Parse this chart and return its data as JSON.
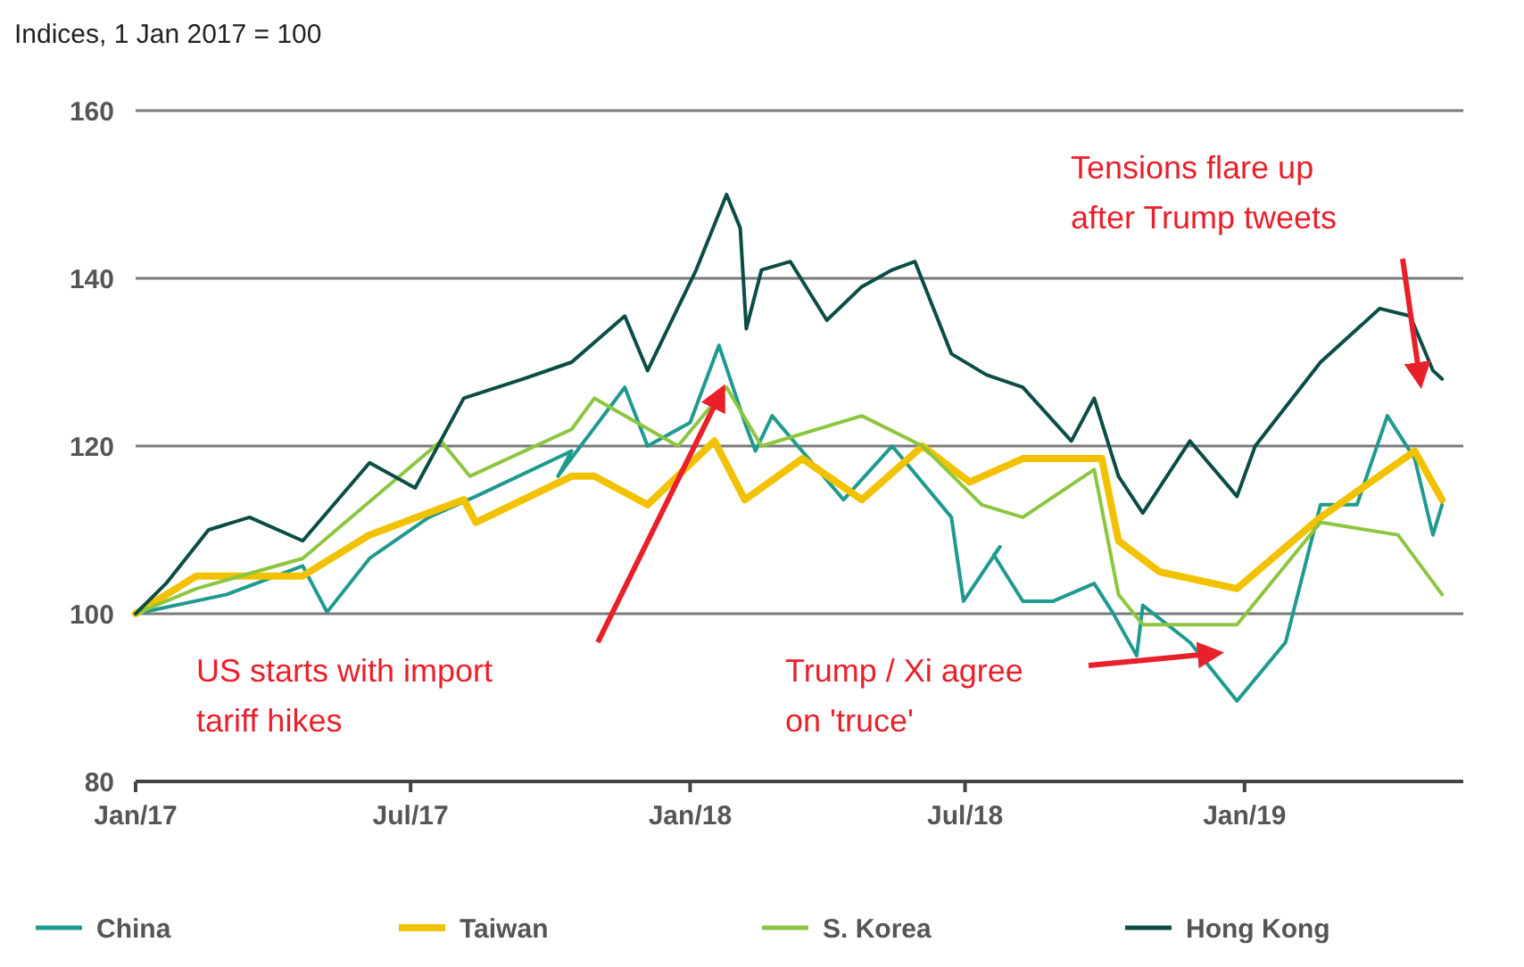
{
  "chart_data": {
    "type": "line",
    "title": "Indices, 1 Jan 2017 = 100",
    "xlim": [
      "2017-01-01",
      "2019-05-25"
    ],
    "ylim": [
      80,
      160
    ],
    "yticks": [
      80,
      100,
      120,
      140,
      160
    ],
    "xticks": [
      {
        "value": "2017-01-01",
        "label": "Jan/17"
      },
      {
        "value": "2017-07-01",
        "label": "Jul/17"
      },
      {
        "value": "2018-01-01",
        "label": "Jan/18"
      },
      {
        "value": "2018-07-01",
        "label": "Jul/18"
      },
      {
        "value": "2019-01-01",
        "label": "Jan/19"
      }
    ],
    "grid": "y",
    "legend": "bottom",
    "line_style": "solid",
    "marker": "none",
    "series": [
      {
        "name": "China",
        "color": "#1f9a8f",
        "x": [
          "2017-01-01",
          "2017-03-02",
          "2017-04-21",
          "2017-05-07",
          "2017-06-04",
          "2017-07-13",
          "2017-08-13",
          "2017-10-15",
          "2017-10-06",
          "2017-11-19",
          "2017-12-04",
          "2018-01-01",
          "2018-01-20",
          "2018-02-06",
          "2018-02-13",
          "2018-02-24",
          "2018-04-12",
          "2018-05-14",
          "2018-06-22",
          "2018-06-30",
          "2018-07-24",
          "2018-07-20",
          "2018-08-08",
          "2018-08-28",
          "2018-09-24",
          "2018-10-06",
          "2018-10-22",
          "2018-10-26",
          "2018-11-26",
          "2018-12-27",
          "2019-01-28",
          "2019-02-20",
          "2019-03-16",
          "2019-04-05",
          "2019-04-23",
          "2019-05-05",
          "2019-05-11"
        ],
        "values": [
          100,
          102.3,
          105.7,
          100.2,
          106.6,
          111.5,
          114,
          119.4,
          116.4,
          127,
          120,
          122.8,
          132,
          122.8,
          119.4,
          123.6,
          113.6,
          120,
          111.5,
          101.5,
          108,
          107,
          101.5,
          101.5,
          103.6,
          100.2,
          95,
          101,
          96.6,
          89.6,
          96.6,
          113,
          113,
          123.6,
          118.5,
          109.4,
          113
        ]
      },
      {
        "name": "Taiwan",
        "color": "#f2c200",
        "x": [
          "2017-01-01",
          "2017-02-10",
          "2017-04-21",
          "2017-06-04",
          "2017-08-05",
          "2017-08-13",
          "2017-10-15",
          "2017-10-30",
          "2017-12-04",
          "2018-01-17",
          "2018-02-06",
          "2018-03-16",
          "2018-04-24",
          "2018-06-03",
          "2018-07-04",
          "2018-08-08",
          "2018-09-29",
          "2018-10-10",
          "2018-11-06",
          "2018-12-27",
          "2019-02-20",
          "2019-04-23",
          "2019-05-11"
        ],
        "values": [
          100,
          104.5,
          104.5,
          109.4,
          113.6,
          110.9,
          116.4,
          116.4,
          113,
          120.6,
          113.6,
          118.5,
          113.6,
          120,
          115.7,
          118.5,
          118.5,
          108.7,
          105,
          103,
          111.5,
          119.4,
          113.6
        ]
      },
      {
        "name": "S. Korea",
        "color": "#8cc63f",
        "x": [
          "2017-01-01",
          "2017-02-10",
          "2017-04-21",
          "2017-07-21",
          "2017-08-09",
          "2017-10-15",
          "2017-10-30",
          "2017-12-24",
          "2018-01-25",
          "2018-02-17",
          "2018-04-24",
          "2018-06-03",
          "2018-07-12",
          "2018-08-08",
          "2018-09-24",
          "2018-10-10",
          "2018-10-26",
          "2018-12-27",
          "2019-02-20",
          "2019-04-12",
          "2019-05-11"
        ],
        "values": [
          100,
          103,
          106.6,
          120.6,
          116.4,
          122,
          125.7,
          120,
          127,
          120,
          123.6,
          120,
          113,
          111.5,
          117.2,
          102.3,
          98.7,
          98.7,
          110.9,
          109.4,
          102.3
        ]
      },
      {
        "name": "Hong Kong",
        "color": "#0b4d45",
        "x": [
          "2017-01-01",
          "2017-01-21",
          "2017-02-18",
          "2017-03-17",
          "2017-04-21",
          "2017-06-04",
          "2017-07-04",
          "2017-08-05",
          "2017-09-13",
          "2017-10-15",
          "2017-11-19",
          "2017-12-04",
          "2018-01-05",
          "2018-01-25",
          "2018-02-03",
          "2018-02-07",
          "2018-02-17",
          "2018-03-08",
          "2018-04-01",
          "2018-04-24",
          "2018-05-14",
          "2018-05-29",
          "2018-06-22",
          "2018-07-15",
          "2018-08-08",
          "2018-09-09",
          "2018-09-24",
          "2018-10-10",
          "2018-10-26",
          "2018-11-26",
          "2018-12-27",
          "2019-01-08",
          "2019-02-20",
          "2019-03-31",
          "2019-04-20",
          "2019-05-05",
          "2019-05-11"
        ],
        "values": [
          100,
          103.6,
          110,
          111.5,
          108.7,
          118,
          115,
          125.7,
          128,
          130,
          135.5,
          129,
          141,
          150,
          146,
          134,
          141,
          142,
          135,
          139,
          141,
          142,
          131,
          128.5,
          127,
          120.6,
          125.7,
          116.4,
          112,
          120.6,
          114,
          120,
          130,
          136.4,
          135.5,
          129,
          128
        ]
      }
    ],
    "annotations": [
      "US starts with import tariff hikes",
      "Trump / Xi agree on 'truce'",
      "Tensions flare up after Trump tweets"
    ]
  }
}
